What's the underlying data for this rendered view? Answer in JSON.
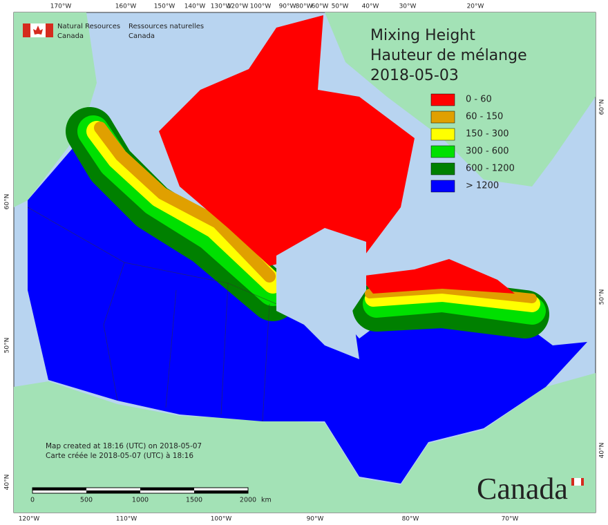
{
  "header": {
    "agency_en": [
      "Natural Resources",
      "Canada"
    ],
    "agency_fr": [
      "Ressources naturelles",
      "Canada"
    ]
  },
  "title": [
    "Mixing Height",
    "Hauteur de mélange",
    "2018-05-03"
  ],
  "legend": [
    {
      "label": "0 - 60",
      "color": "#ff0000"
    },
    {
      "label": "60 - 150",
      "color": "#e0a000"
    },
    {
      "label": "150 - 300",
      "color": "#ffff00"
    },
    {
      "label": "300 - 600",
      "color": "#00e000"
    },
    {
      "label": "600 - 1200",
      "color": "#008000"
    },
    {
      "label": "> 1200",
      "color": "#0000ff"
    }
  ],
  "graticule": {
    "top": [
      "170°W",
      "160°W",
      "150°W",
      "140°W",
      "130°W",
      "120°W",
      "100°W",
      "90°W",
      "80°W",
      "60°W",
      "50°W",
      "40°W",
      "30°W",
      "20°W"
    ],
    "bottom": [
      "120°W",
      "110°W",
      "100°W",
      "90°W",
      "80°W",
      "70°W"
    ],
    "left": [
      "60°N",
      "50°N",
      "40°N"
    ],
    "right": [
      "60°N",
      "50°N",
      "40°N"
    ]
  },
  "credit": [
    "Map created at 18:16 (UTC) on 2018-05-07",
    "Carte créée le 2018-05-07 (UTC) à 18:16"
  ],
  "scale": {
    "labels": [
      "0",
      "500",
      "1000",
      "1500",
      "2000"
    ],
    "unit": "km"
  },
  "wordmark": "Canada"
}
